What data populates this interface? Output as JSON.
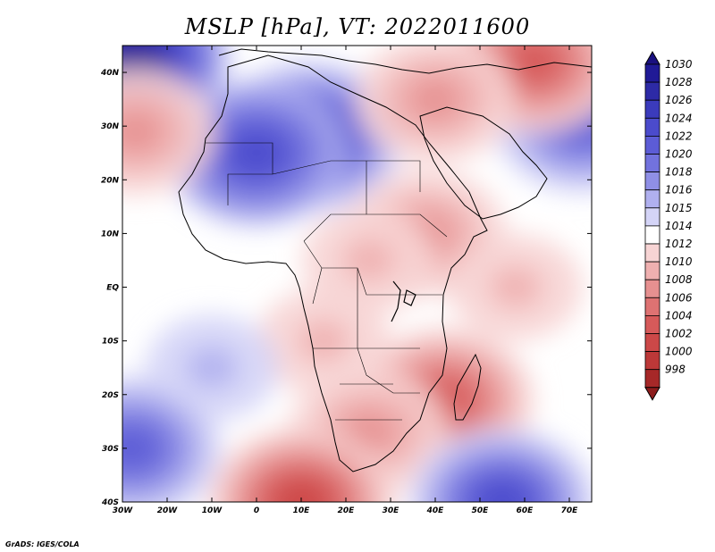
{
  "title": "MSLP [hPa], VT: 2022011600",
  "credit": "GrADS: IGES/COLA",
  "map": {
    "lon_range": [
      -30,
      75
    ],
    "lat_range": [
      -40,
      45
    ],
    "lon_ticks": [
      {
        "value": -30,
        "label": "30W"
      },
      {
        "value": -20,
        "label": "20W"
      },
      {
        "value": -10,
        "label": "10W"
      },
      {
        "value": 0,
        "label": "0"
      },
      {
        "value": 10,
        "label": "10E"
      },
      {
        "value": 20,
        "label": "20E"
      },
      {
        "value": 30,
        "label": "30E"
      },
      {
        "value": 40,
        "label": "40E"
      },
      {
        "value": 50,
        "label": "50E"
      },
      {
        "value": 60,
        "label": "60E"
      },
      {
        "value": 70,
        "label": "70E"
      }
    ],
    "lat_ticks": [
      {
        "value": 40,
        "label": "40N"
      },
      {
        "value": 30,
        "label": "30N"
      },
      {
        "value": 20,
        "label": "20N"
      },
      {
        "value": 10,
        "label": "10N"
      },
      {
        "value": 0,
        "label": "EQ"
      },
      {
        "value": -10,
        "label": "10S"
      },
      {
        "value": -20,
        "label": "20S"
      },
      {
        "value": -30,
        "label": "30S"
      },
      {
        "value": -40,
        "label": "40S"
      }
    ],
    "background_level": 1014,
    "pressure_systems": [
      {
        "name": "saharan-high",
        "lon": 12,
        "lat": 28,
        "value": 1027
      },
      {
        "name": "iberia-high",
        "lon": -28,
        "lat": 43,
        "value": 1030
      },
      {
        "name": "west-sahara-high",
        "lon": 0,
        "lat": 25,
        "value": 1024
      },
      {
        "name": "arabian-sea-high",
        "lon": 73,
        "lat": 31,
        "value": 1023
      },
      {
        "name": "atlantic-cutoff-low",
        "lon": -27,
        "lat": 29,
        "value": 1009
      },
      {
        "name": "turkey-low",
        "lon": 62,
        "lat": 42,
        "value": 1005
      },
      {
        "name": "mideast-low",
        "lon": 40,
        "lat": 35,
        "value": 1009
      },
      {
        "name": "ethiopia-low",
        "lon": 38,
        "lat": 10,
        "value": 1009
      },
      {
        "name": "central-africa-low",
        "lon": 25,
        "lat": 5,
        "value": 1011
      },
      {
        "name": "indian-ocean-low",
        "lon": 58,
        "lat": 0,
        "value": 1010
      },
      {
        "name": "mozambique-channel-low",
        "lon": 42,
        "lat": -21,
        "value": 1004
      },
      {
        "name": "south-africa-low",
        "lon": 25,
        "lat": -27,
        "value": 1009
      },
      {
        "name": "angola-low",
        "lon": 15,
        "lat": -10,
        "value": 1011
      },
      {
        "name": "south-atlantic-high",
        "lon": -10,
        "lat": -15,
        "value": 1017
      },
      {
        "name": "southwest-atlantic-high",
        "lon": -28,
        "lat": -30,
        "value": 1023
      },
      {
        "name": "indian-ocean-high",
        "lon": 55,
        "lat": -40,
        "value": 1025
      },
      {
        "name": "southern-ocean-low",
        "lon": 10,
        "lat": -40,
        "value": 1002
      }
    ]
  },
  "colorbar": {
    "levels": [
      {
        "label": "1030",
        "color": "#201a96"
      },
      {
        "label": "1028",
        "color": "#2d2aa6"
      },
      {
        "label": "1026",
        "color": "#3b3bbc"
      },
      {
        "label": "1024",
        "color": "#4b4bcc"
      },
      {
        "label": "1022",
        "color": "#5c5cd6"
      },
      {
        "label": "1020",
        "color": "#7272de"
      },
      {
        "label": "1018",
        "color": "#8f8fe6"
      },
      {
        "label": "1016",
        "color": "#b0b0ef"
      },
      {
        "label": "1015",
        "color": "#d4d4f7"
      },
      {
        "label": "1014",
        "color": "#ffffff"
      },
      {
        "label": "1012",
        "color": "#f7d4d4"
      },
      {
        "label": "1010",
        "color": "#efb0b0"
      },
      {
        "label": "1008",
        "color": "#e69090"
      },
      {
        "label": "1006",
        "color": "#de7272"
      },
      {
        "label": "1004",
        "color": "#d65a5a"
      },
      {
        "label": "1002",
        "color": "#cc4848"
      },
      {
        "label": "1000",
        "color": "#bc3838"
      },
      {
        "label": "998",
        "color": "#a62828"
      }
    ],
    "top_arrow_color": "#1a1080",
    "bottom_arrow_color": "#8c1c1c"
  }
}
